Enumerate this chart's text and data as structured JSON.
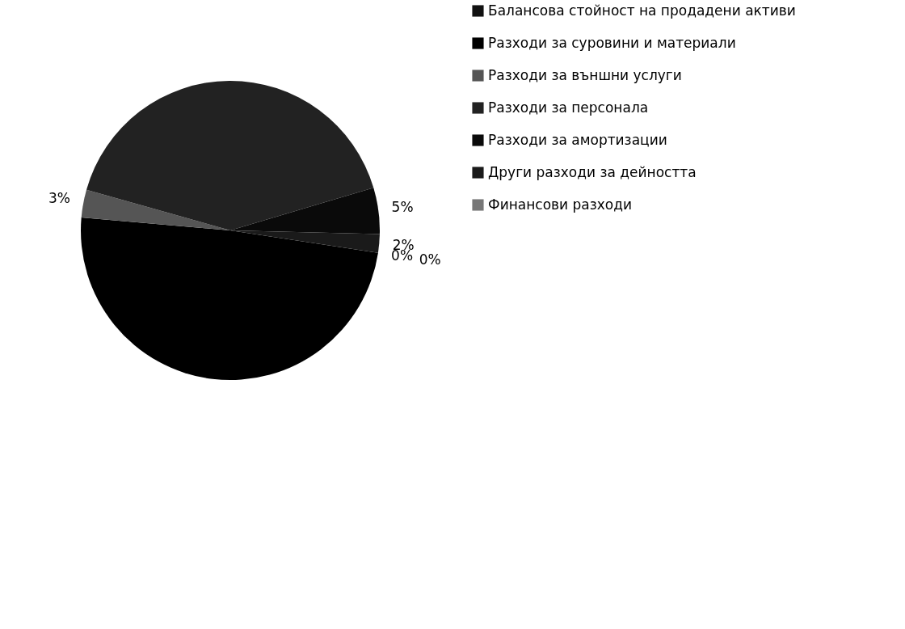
{
  "chart_data": {
    "type": "pie",
    "categories": [
      "Балансова стойност на продадени активи",
      "Разходи за суровини и материали",
      "Разходи за външни услуги",
      "Разходи за персонала",
      "Разходи за амортизации",
      "Други разходи за дейността",
      "Финансови разходи"
    ],
    "values": [
      0,
      49,
      3,
      41,
      5,
      2,
      0
    ],
    "value_labels": [
      "0%",
      null,
      "3%",
      null,
      "5%",
      "2%",
      "0%"
    ],
    "colors": [
      "#111111",
      "#000000",
      "#555555",
      "#222222",
      "#0a0a0a",
      "#1a1a1a",
      "#777777"
    ],
    "legend": "right"
  }
}
